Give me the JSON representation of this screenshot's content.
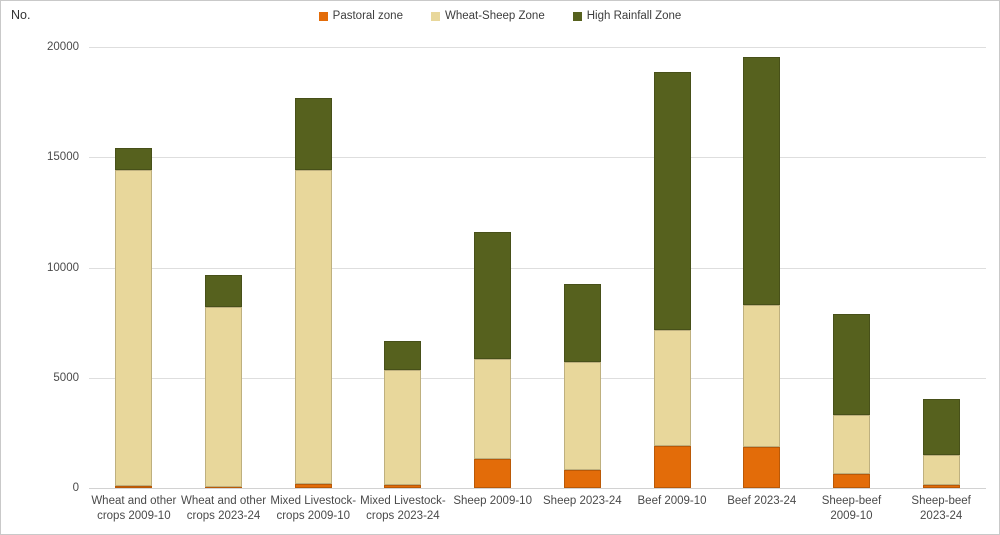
{
  "axis": {
    "unit_label": "No.",
    "yticks": [
      0,
      5000,
      10000,
      15000,
      20000
    ]
  },
  "legend": {
    "position": "top-center",
    "items": [
      {
        "label": "Pastoral zone",
        "color": "#E36C09"
      },
      {
        "label": "Wheat-Sheep Zone",
        "color": "#E8D79B"
      },
      {
        "label": "High Rainfall Zone",
        "color": "#56611E"
      }
    ]
  },
  "chart_data": {
    "type": "bar",
    "stacked": true,
    "title": "",
    "xlabel": "",
    "ylabel": "No.",
    "ylim": [
      0,
      20000
    ],
    "yticks": [
      0,
      5000,
      10000,
      15000,
      20000
    ],
    "grid": true,
    "legend_position": "top",
    "categories": [
      "Wheat and other crops 2009-10",
      "Wheat and other crops 2023-24",
      "Mixed Livestock-crops 2009-10",
      "Mixed Livestock-crops 2023-24",
      "Sheep 2009-10",
      "Sheep 2023-24",
      "Beef 2009-10",
      "Beef 2023-24",
      "Sheep-beef 2009-10",
      "Sheep-beef 2023-24"
    ],
    "series": [
      {
        "name": "Pastoral zone",
        "color": "#E36C09",
        "values": [
          100,
          50,
          200,
          150,
          1300,
          800,
          1900,
          1850,
          650,
          150
        ]
      },
      {
        "name": "Wheat-Sheep Zone",
        "color": "#E8D79B",
        "values": [
          14300,
          8150,
          14200,
          5200,
          4550,
          4900,
          5250,
          6450,
          2650,
          1350
        ]
      },
      {
        "name": "High Rainfall Zone",
        "color": "#56611E",
        "values": [
          1000,
          1450,
          3300,
          1300,
          5750,
          3550,
          11700,
          11250,
          4600,
          2550
        ]
      }
    ],
    "totals": [
      15400,
      9650,
      17700,
      6650,
      11600,
      9250,
      18850,
      19550,
      7900,
      4050
    ]
  },
  "colors": {
    "background": "#FFFFFF",
    "gridline": "#DEDEDE",
    "axis_text": "#4A4A4A",
    "border": "#C9C9C9"
  }
}
